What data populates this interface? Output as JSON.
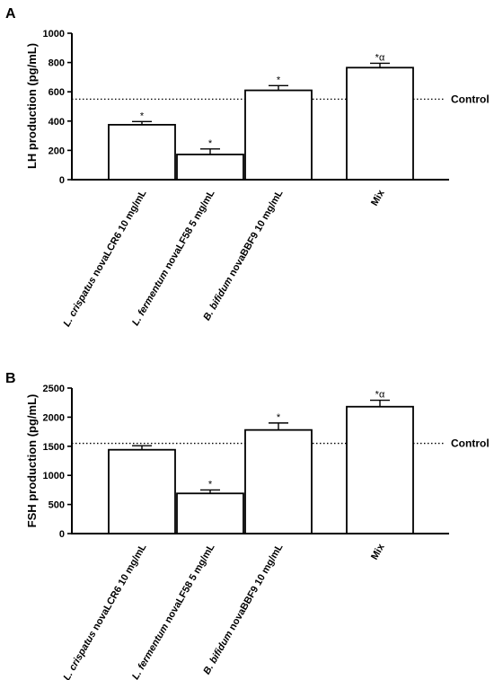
{
  "chart_data": [
    {
      "panel": "A",
      "type": "bar",
      "categories": [
        {
          "pre": "L. crispatus",
          "post": " novaLCR6 10 mg/mL"
        },
        {
          "pre": "L. fermentum",
          "post": " novaLF58 5 mg/mL"
        },
        {
          "pre": "B. bifidum",
          "post": " novaBBF9 10 mg/mL"
        },
        {
          "pre": "",
          "post": "Mix"
        }
      ],
      "values": [
        375,
        172,
        610,
        765
      ],
      "errors": [
        22,
        38,
        32,
        30
      ],
      "significance": [
        "*",
        "*",
        "*",
        "*α"
      ],
      "ylabel": "LH production (pg/mL)",
      "ylim": [
        0,
        1000
      ],
      "yticks": [
        0,
        200,
        400,
        600,
        800,
        1000
      ],
      "reference": {
        "label": "Control",
        "value": 550
      }
    },
    {
      "panel": "B",
      "type": "bar",
      "categories": [
        {
          "pre": "L. crispatus",
          "post": " novaLCR6 10 mg/mL"
        },
        {
          "pre": "L. fermentum",
          "post": " novaLF58 5 mg/mL"
        },
        {
          "pre": "B. bifidum",
          "post": " novaBBF9 10 mg/mL"
        },
        {
          "pre": "",
          "post": "Mix"
        }
      ],
      "values": [
        1440,
        690,
        1780,
        2180
      ],
      "errors": [
        70,
        60,
        120,
        110
      ],
      "significance": [
        "",
        "*",
        "*",
        "*α"
      ],
      "ylabel": "FSH production (pg/mL)",
      "ylim": [
        0,
        2500
      ],
      "yticks": [
        0,
        500,
        1000,
        1500,
        2000,
        2500
      ],
      "reference": {
        "label": "Control",
        "value": 1550
      }
    }
  ]
}
